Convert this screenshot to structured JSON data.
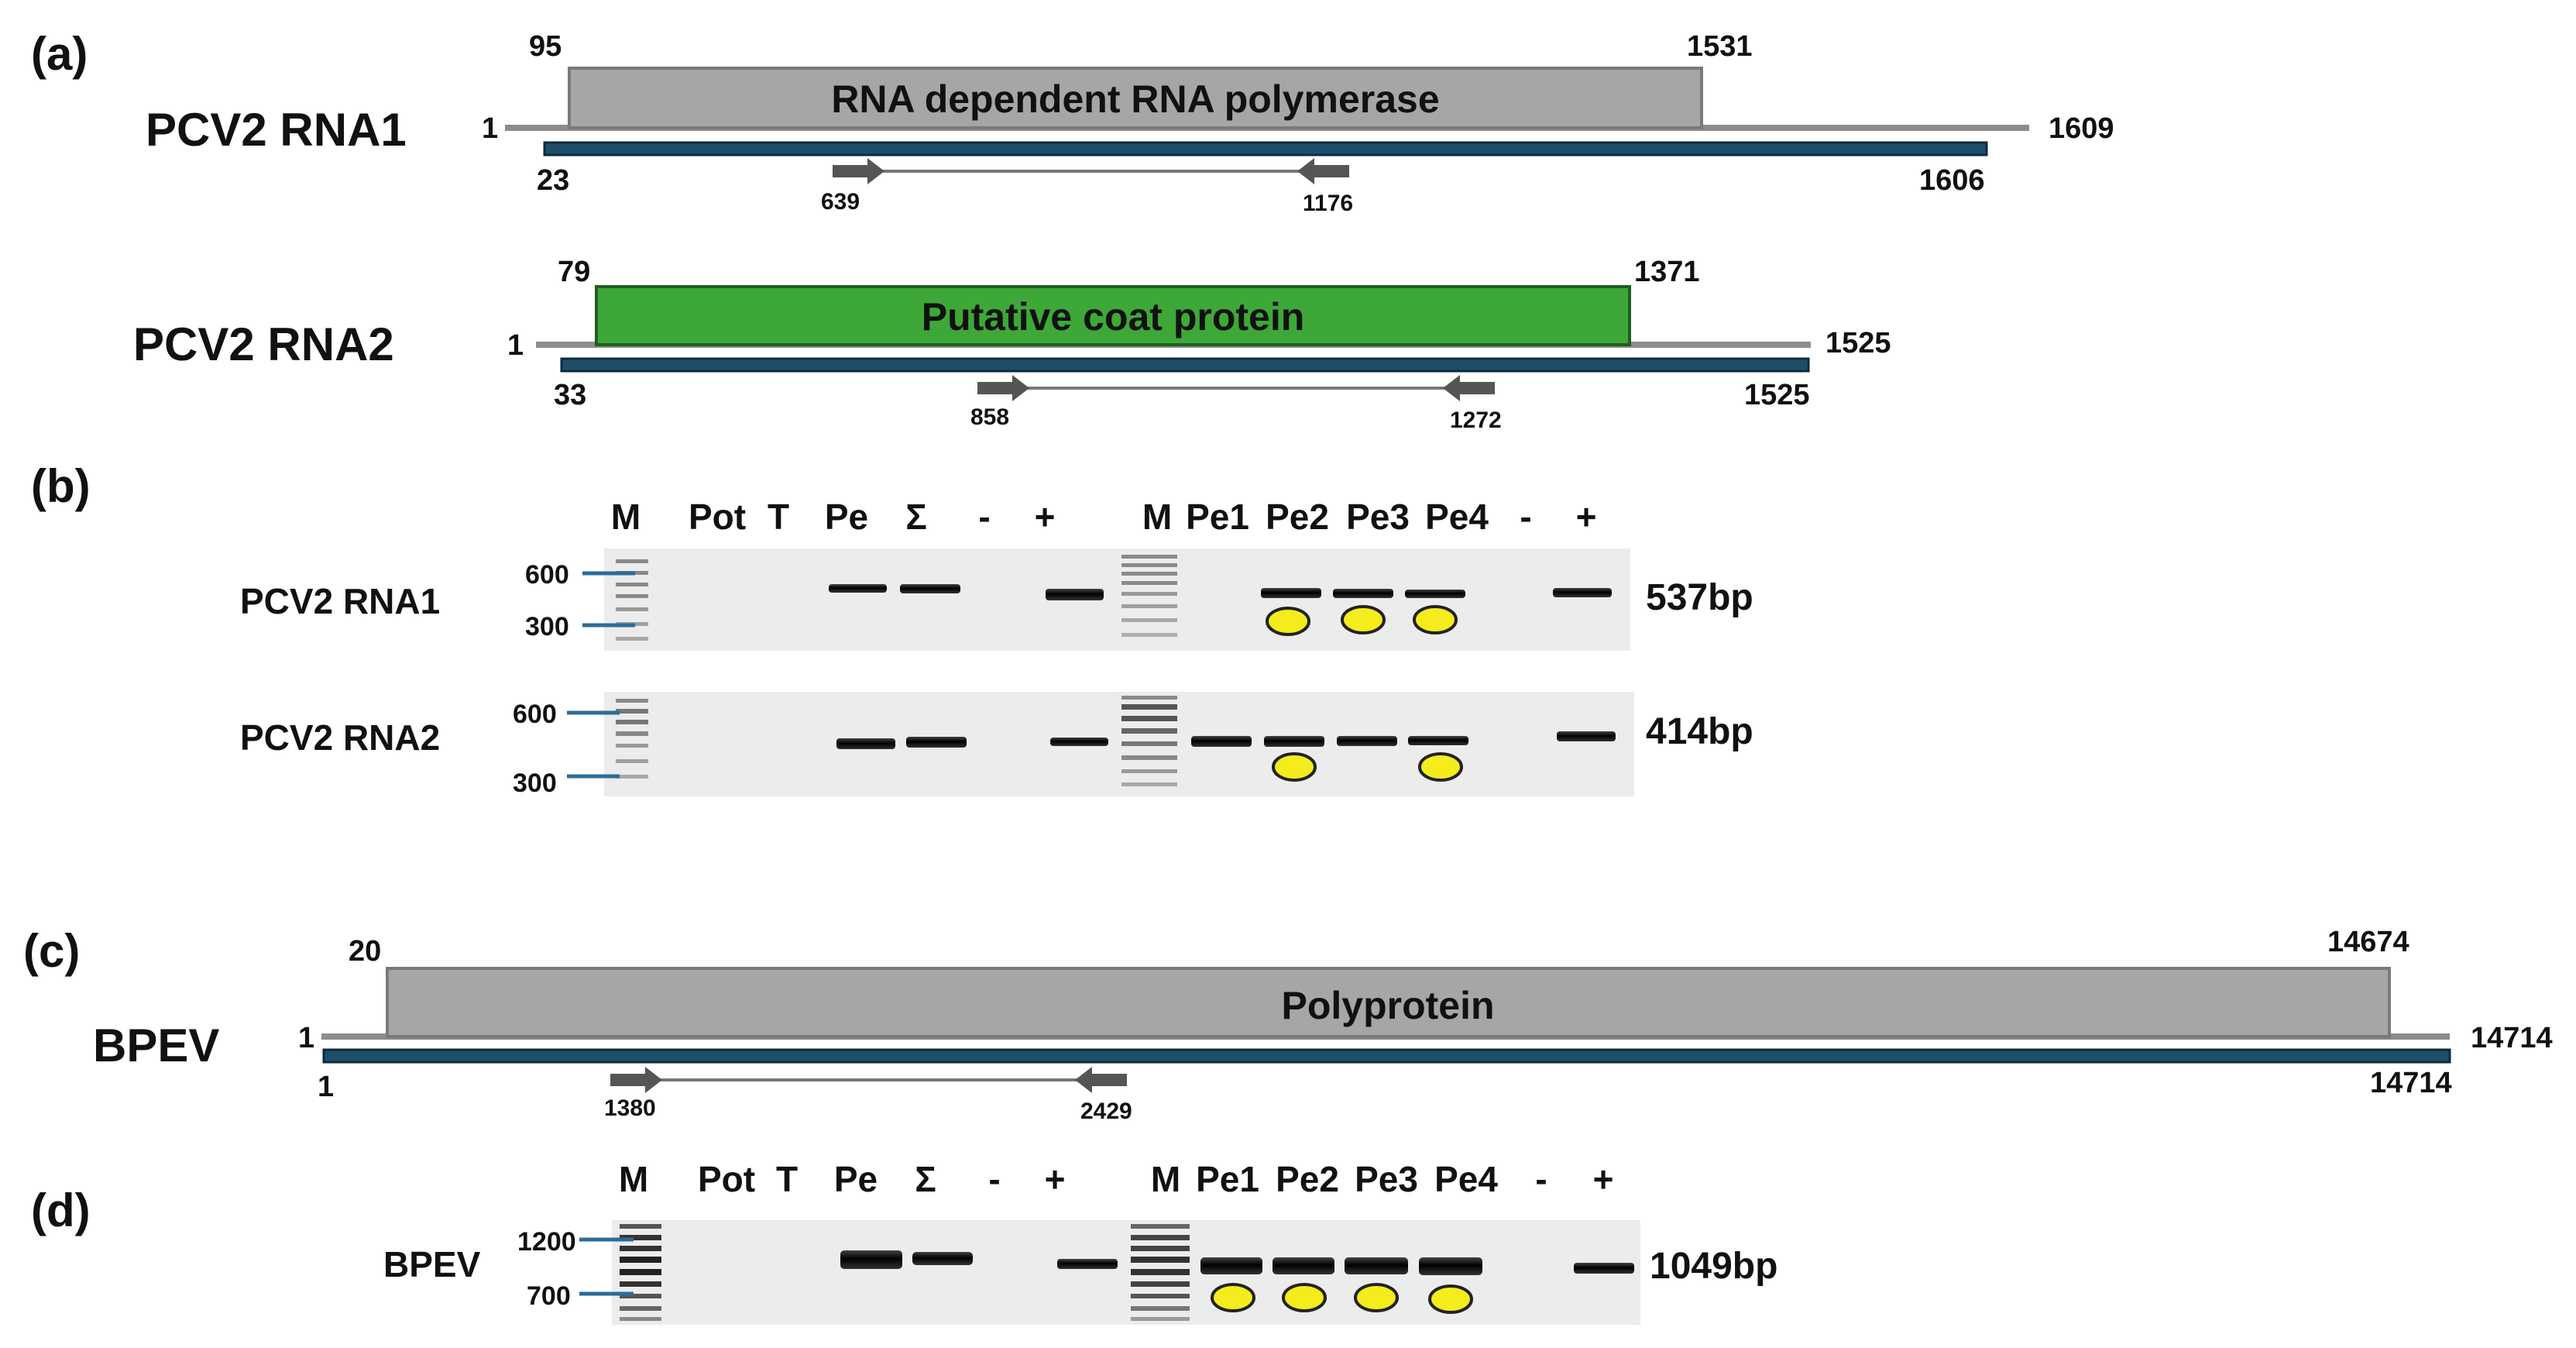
{
  "colors": {
    "rdrp_box": "#a6a6a6",
    "coat_box": "#3da837",
    "poly_box": "#a6a6a6",
    "genome_line": "#8c8c8c",
    "contig_bar": "#1f4e6b",
    "primer_arrow": "#555555",
    "gel_bg": "#ececec",
    "band": "#111111",
    "marker_tick": "#2b6c99",
    "highlight_dot": "#f5ec1d"
  },
  "panels": {
    "a": "(a)",
    "b": "(b)",
    "c": "(c)",
    "d": "(d)"
  },
  "rna1": {
    "name": "PCV2 RNA1",
    "orf_label": "RNA dependent RNA polymerase",
    "orf_start": "95",
    "orf_end": "1531",
    "genome_start": "1",
    "genome_end": "1609",
    "contig_start": "23",
    "contig_end": "1606",
    "primer_f": "639",
    "primer_r": "1176"
  },
  "rna2": {
    "name": "PCV2 RNA2",
    "orf_label": "Putative coat protein",
    "orf_start": "79",
    "orf_end": "1371",
    "genome_start": "1",
    "genome_end": "1525",
    "contig_start": "33",
    "contig_end": "1525",
    "primer_f": "858",
    "primer_r": "1272"
  },
  "bpev": {
    "name": "BPEV",
    "orf_label": "Polyprotein",
    "orf_start": "20",
    "orf_end": "14674",
    "genome_start": "1",
    "genome_end": "14714",
    "contig_start": "1",
    "contig_end": "14714",
    "primer_f": "1380",
    "primer_r": "2429"
  },
  "gel_b": {
    "lanes_left": [
      "M",
      "Pot",
      "T",
      "Pe",
      "Σ",
      "-",
      "+"
    ],
    "lanes_right": [
      "M",
      "Pe1",
      "Pe2",
      "Pe3",
      "Pe4",
      "-",
      "+"
    ],
    "row1": {
      "label": "PCV2 RNA1",
      "size": "537bp",
      "marker_hi": "600",
      "marker_lo": "300"
    },
    "row2": {
      "label": "PCV2 RNA2",
      "size": "414bp",
      "marker_hi": "600",
      "marker_lo": "300"
    }
  },
  "gel_d": {
    "lanes_left": [
      "M",
      "Pot",
      "T",
      "Pe",
      "Σ",
      "-",
      "+"
    ],
    "lanes_right": [
      "M",
      "Pe1",
      "Pe2",
      "Pe3",
      "Pe4",
      "-",
      "+"
    ],
    "row1": {
      "label": "BPEV",
      "size": "1049bp",
      "marker_hi": "1200",
      "marker_lo": "700"
    }
  }
}
